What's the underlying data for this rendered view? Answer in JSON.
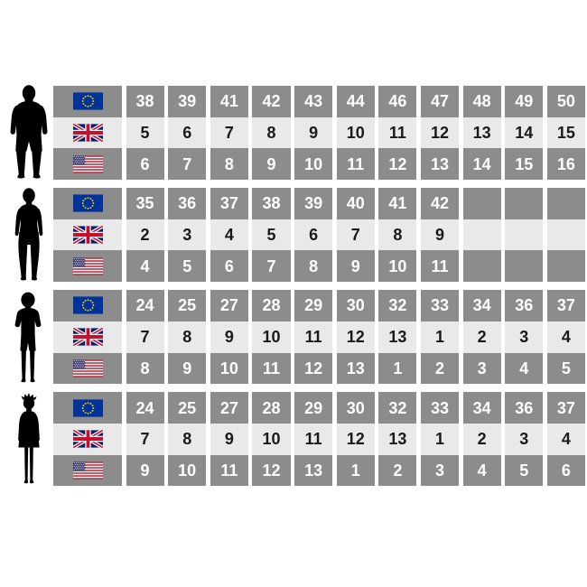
{
  "colors": {
    "background": "#FFFFFF",
    "cell_dark": "#8C8C8C",
    "cell_light": "#E9E9E9",
    "text_dark_row": "#FFFFFF",
    "text_light_row": "#1A1A1A",
    "silhouette": "#000000",
    "eu_blue": "#003399",
    "eu_star_yellow": "#FFCC00",
    "uk_blue": "#012169",
    "uk_red": "#C8102E",
    "us_red": "#B22234",
    "us_blue": "#3C3B6E"
  },
  "figures": [
    {
      "id": "man",
      "icon": "man-silhouette"
    },
    {
      "id": "woman",
      "icon": "woman-silhouette"
    },
    {
      "id": "boy",
      "icon": "boy-silhouette"
    },
    {
      "id": "girl",
      "icon": "girl-silhouette"
    }
  ],
  "table": {
    "columns": 11,
    "row_order": [
      "eu",
      "uk",
      "us"
    ],
    "flags": {
      "eu": "eu-flag-icon",
      "uk": "uk-flag-icon",
      "us": "us-flag-icon"
    },
    "sections": [
      {
        "id": "men",
        "rows": {
          "eu": [
            "38",
            "39",
            "41",
            "42",
            "43",
            "44",
            "46",
            "47",
            "48",
            "49",
            "50"
          ],
          "uk": [
            "5",
            "6",
            "7",
            "8",
            "9",
            "10",
            "11",
            "12",
            "13",
            "14",
            "15"
          ],
          "us": [
            "6",
            "7",
            "8",
            "9",
            "10",
            "11",
            "12",
            "13",
            "14",
            "15",
            "16"
          ]
        }
      },
      {
        "id": "women",
        "rows": {
          "eu": [
            "35",
            "36",
            "37",
            "38",
            "39",
            "40",
            "41",
            "42",
            "",
            "",
            ""
          ],
          "uk": [
            "2",
            "3",
            "4",
            "5",
            "6",
            "7",
            "8",
            "9",
            "",
            "",
            ""
          ],
          "us": [
            "4",
            "5",
            "6",
            "7",
            "8",
            "9",
            "10",
            "11",
            "",
            "",
            ""
          ]
        }
      },
      {
        "id": "boys",
        "rows": {
          "eu": [
            "24",
            "25",
            "27",
            "28",
            "29",
            "30",
            "32",
            "33",
            "34",
            "36",
            "37"
          ],
          "uk": [
            "7",
            "8",
            "9",
            "10",
            "11",
            "12",
            "13",
            "1",
            "2",
            "3",
            "4"
          ],
          "us": [
            "8",
            "9",
            "10",
            "11",
            "12",
            "13",
            "1",
            "2",
            "3",
            "4",
            "5"
          ]
        }
      },
      {
        "id": "girls",
        "rows": {
          "eu": [
            "24",
            "25",
            "27",
            "28",
            "29",
            "30",
            "32",
            "33",
            "34",
            "36",
            "37"
          ],
          "uk": [
            "7",
            "8",
            "9",
            "10",
            "11",
            "12",
            "13",
            "1",
            "2",
            "3",
            "4"
          ],
          "us": [
            "9",
            "10",
            "11",
            "12",
            "13",
            "1",
            "2",
            "3",
            "4",
            "5",
            "6"
          ]
        }
      }
    ]
  },
  "chart_data": {
    "type": "table",
    "groups": [
      "man",
      "woman",
      "boy",
      "girl"
    ],
    "regions": [
      "EU",
      "UK",
      "US"
    ],
    "sections": [
      {
        "group": "man",
        "eu": [
          38,
          39,
          41,
          42,
          43,
          44,
          46,
          47,
          48,
          49,
          50
        ],
        "uk": [
          5,
          6,
          7,
          8,
          9,
          10,
          11,
          12,
          13,
          14,
          15
        ],
        "us": [
          6,
          7,
          8,
          9,
          10,
          11,
          12,
          13,
          14,
          15,
          16
        ]
      },
      {
        "group": "woman",
        "eu": [
          35,
          36,
          37,
          38,
          39,
          40,
          41,
          42
        ],
        "uk": [
          2,
          3,
          4,
          5,
          6,
          7,
          8,
          9
        ],
        "us": [
          4,
          5,
          6,
          7,
          8,
          9,
          10,
          11
        ]
      },
      {
        "group": "boy",
        "eu": [
          24,
          25,
          27,
          28,
          29,
          30,
          32,
          33,
          34,
          36,
          37
        ],
        "uk": [
          7,
          8,
          9,
          10,
          11,
          12,
          13,
          1,
          2,
          3,
          4
        ],
        "us": [
          8,
          9,
          10,
          11,
          12,
          13,
          1,
          2,
          3,
          4,
          5
        ]
      },
      {
        "group": "girl",
        "eu": [
          24,
          25,
          27,
          28,
          29,
          30,
          32,
          33,
          34,
          36,
          37
        ],
        "uk": [
          7,
          8,
          9,
          10,
          11,
          12,
          13,
          1,
          2,
          3,
          4
        ],
        "us": [
          9,
          10,
          11,
          12,
          13,
          1,
          2,
          3,
          4,
          5,
          6
        ]
      }
    ]
  }
}
